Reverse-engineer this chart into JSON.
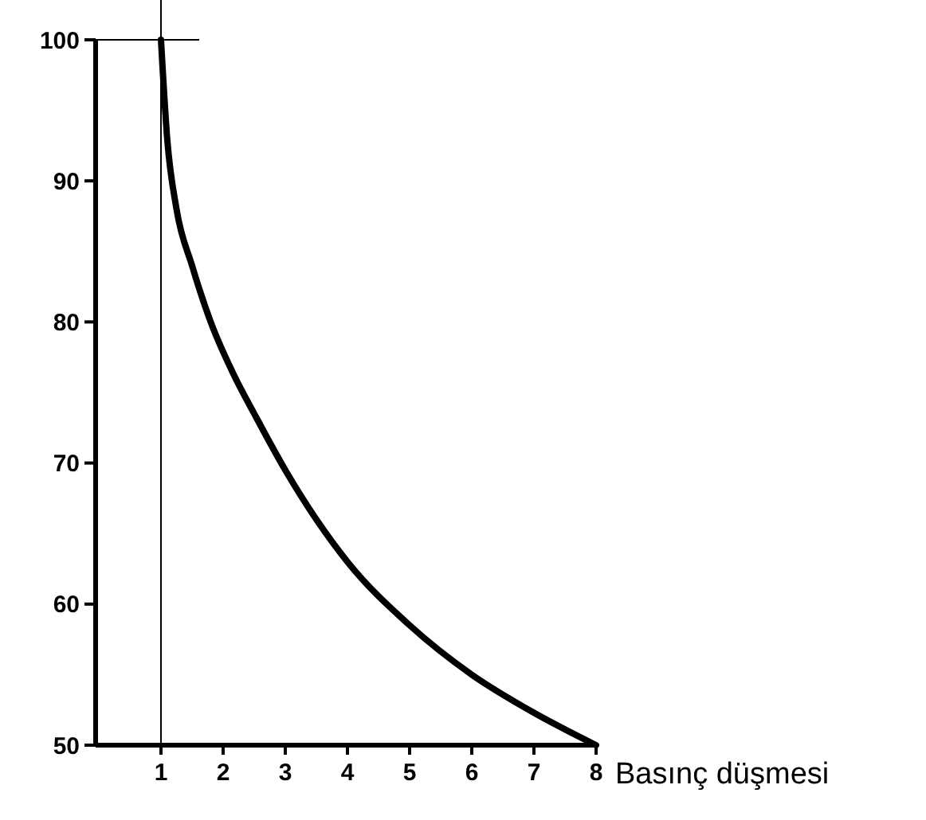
{
  "chart_data": {
    "type": "line",
    "xlabel": "Basınç düşmesi",
    "x": [
      1,
      1.1,
      1.25,
      1.5,
      1.8,
      2.2,
      2.5,
      3,
      3.5,
      4,
      5,
      6,
      7,
      8
    ],
    "values": [
      100,
      93,
      88,
      84,
      80,
      76,
      73.5,
      69.5,
      66,
      63,
      58.5,
      55,
      52.3,
      50
    ],
    "color": "#000000",
    "marker": "none",
    "line_style": "solid",
    "grid": false,
    "xlim": [
      0,
      8
    ],
    "xticks": [
      1,
      2,
      3,
      4,
      5,
      6,
      7,
      8
    ],
    "ylim": [
      50,
      100
    ],
    "yticks": [
      50,
      60,
      70,
      80,
      90,
      100
    ],
    "ref_lines": [
      {
        "axis": "x",
        "value": 1,
        "color": "#000000"
      },
      {
        "axis": "y",
        "value": 100,
        "color": "#000000"
      }
    ]
  }
}
